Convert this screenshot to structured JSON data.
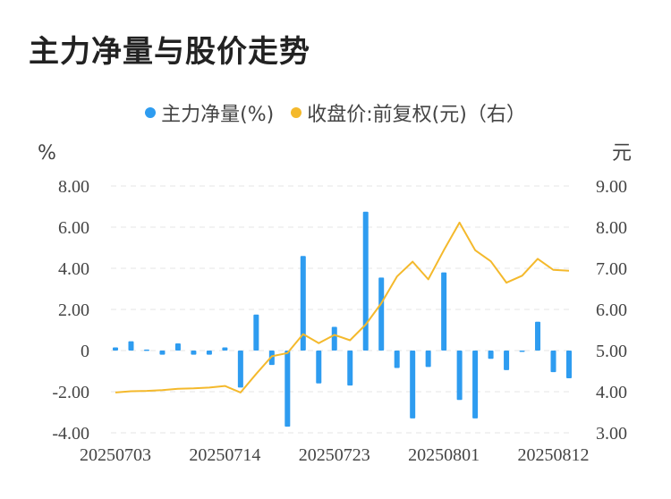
{
  "title": "主力净量与股价走势",
  "colors": {
    "bar": "#2e9cf0",
    "line": "#f4b92c",
    "grid": "#e4e4e4"
  },
  "chart_data": {
    "type": "bar+line",
    "left_unit": "%",
    "right_unit": "元",
    "legend_position": "top-center",
    "grid": true,
    "x_tick_labels": [
      "20250703",
      "20250714",
      "20250723",
      "20250801",
      "20250812"
    ],
    "x_tick_indices": [
      0,
      7,
      14,
      21,
      28
    ],
    "left_axis": {
      "min": -4,
      "max": 8,
      "ticks": [
        8,
        6,
        4,
        2,
        0,
        -2,
        -4
      ],
      "tick_labels": [
        "8.00",
        "6.00",
        "4.00",
        "2.00",
        "0",
        "-2.00",
        "-4.00"
      ]
    },
    "right_axis": {
      "min": 3,
      "max": 9,
      "ticks": [
        9,
        8,
        7,
        6,
        5,
        4,
        3
      ],
      "tick_labels": [
        "9.00",
        "8.00",
        "7.00",
        "6.00",
        "5.00",
        "4.00",
        "3.00"
      ]
    },
    "series": [
      {
        "name": "主力净量(%)",
        "type": "bar",
        "axis": "left",
        "values": [
          0.15,
          0.45,
          0.05,
          -0.2,
          0.35,
          -0.2,
          -0.2,
          0.15,
          -1.8,
          1.75,
          -0.7,
          -3.7,
          4.6,
          -1.6,
          1.15,
          -1.7,
          6.75,
          3.55,
          -0.85,
          -3.3,
          -0.8,
          3.8,
          -2.4,
          -3.3,
          -0.4,
          -0.95,
          -0.05,
          1.4,
          -1.05,
          -1.35
        ]
      },
      {
        "name": "收盘价:前复权(元)（右）",
        "type": "line",
        "axis": "right",
        "values": [
          3.98,
          4.01,
          4.02,
          4.04,
          4.07,
          4.08,
          4.1,
          4.14,
          3.98,
          4.43,
          4.86,
          4.94,
          5.4,
          5.18,
          5.38,
          5.25,
          5.63,
          6.15,
          6.8,
          7.16,
          6.73,
          7.44,
          8.11,
          7.44,
          7.17,
          6.65,
          6.82,
          7.23,
          6.96,
          6.94
        ]
      }
    ]
  }
}
